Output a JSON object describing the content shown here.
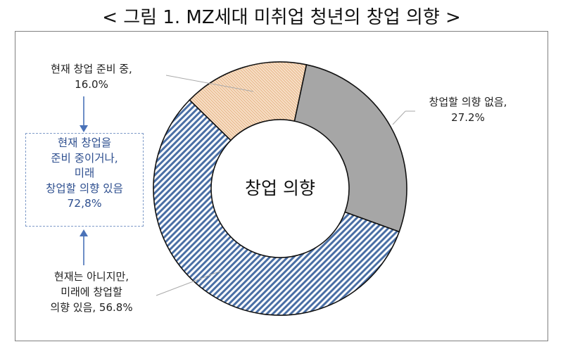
{
  "title": "< 그림 1. MZ세대 미취업 청년의 창업 의향 >",
  "chart_data": {
    "type": "pie",
    "subtype": "donut",
    "title": "< 그림 1. MZ세대 미취업 청년의 창업 의향 >",
    "center_label": "창업 의향",
    "slices": [
      {
        "label": "창업할 의향 없음",
        "value": 27.2,
        "color": "#a6a6a6",
        "pattern": "solid"
      },
      {
        "label": "현재는 아니지만, 미래에 창업할 의향 있음",
        "value": 56.8,
        "color": "#4a6fa5",
        "pattern": "diagonal-stripes"
      },
      {
        "label": "현재 창업 준비 중",
        "value": 16.0,
        "color": "#f3cfa8",
        "pattern": "fine-diagonal-stripes"
      }
    ],
    "annotation": {
      "text": "현재 창업을 준비 중이거나, 미래 창업할 의향 있음 72,8%",
      "value": 72.8
    }
  },
  "labels": {
    "preparing": {
      "line1": "현재 창업 준비 중,",
      "line2": "16.0%"
    },
    "no_intent": {
      "line1": "창업할 의향 없음,",
      "line2": "27.2%"
    },
    "future": {
      "line1": "현재는 아니지만,",
      "line2": "미래에 창업할",
      "line3": "의향 있음, 56.8%"
    },
    "summary": {
      "line1": "현재 창업을",
      "line2": "준비 중이거나,",
      "line3": "미래",
      "line4": "창업할 의향 있음",
      "line5": "72,8%"
    }
  },
  "colors": {
    "arrow": "#4a72b8",
    "summary_text": "#2e4f8f",
    "summary_border": "#7f9bc8"
  }
}
